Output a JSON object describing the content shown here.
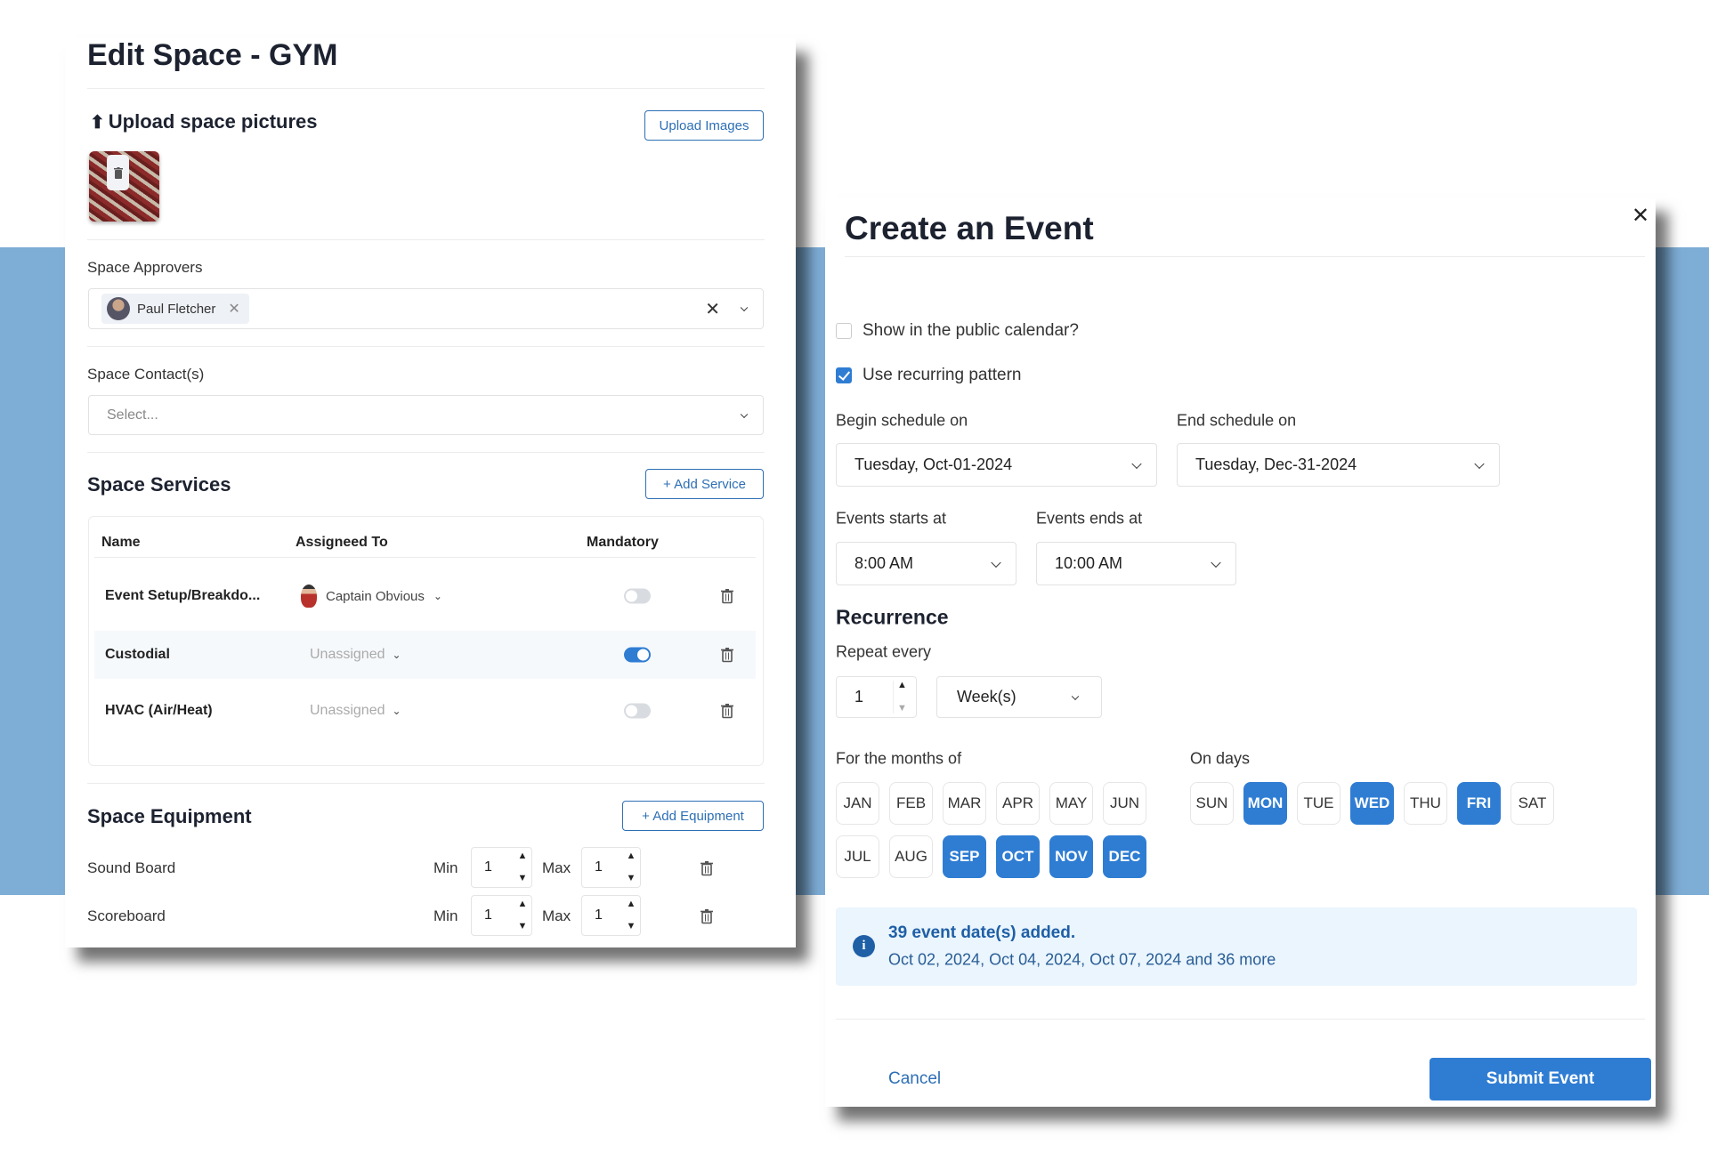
{
  "colors": {
    "accent": "#2f7dd3",
    "background_band": "#7eadd6",
    "info_bg": "#eaf5fd"
  },
  "edit_space": {
    "title": "Edit Space - GYM",
    "upload": {
      "heading": "Upload space pictures",
      "icon": "upload-icon",
      "button": "Upload Images"
    },
    "approvers": {
      "label": "Space Approvers",
      "selected": [
        {
          "name": "Paul Fletcher"
        }
      ]
    },
    "contacts": {
      "label": "Space Contact(s)",
      "placeholder": "Select..."
    },
    "services": {
      "heading": "Space Services",
      "add_button": "+ Add Service",
      "columns": [
        "Name",
        "Assigneed To",
        "Mandatory"
      ],
      "rows": [
        {
          "name": "Event Setup/Breakdo...",
          "assigned": "Captain Obvious",
          "mandatory": false
        },
        {
          "name": "Custodial",
          "assigned": "Unassigned",
          "mandatory": true
        },
        {
          "name": "HVAC (Air/Heat)",
          "assigned": "Unassigned",
          "mandatory": false
        }
      ]
    },
    "equipment": {
      "heading": "Space Equipment",
      "add_button": "+ Add Equipment",
      "min_label": "Min",
      "max_label": "Max",
      "rows": [
        {
          "name": "Sound Board",
          "min": "1",
          "max": "1"
        },
        {
          "name": "Scoreboard",
          "min": "1",
          "max": "1"
        }
      ]
    }
  },
  "create_event": {
    "title": "Create an Event",
    "public_calendar": {
      "label": "Show in the public calendar?",
      "checked": false
    },
    "recurring": {
      "label": "Use recurring pattern",
      "checked": true
    },
    "begin": {
      "label": "Begin schedule on",
      "value": "Tuesday, Oct-01-2024"
    },
    "end": {
      "label": "End schedule on",
      "value": "Tuesday, Dec-31-2024"
    },
    "starts": {
      "label": "Events starts at",
      "value": "8:00 AM"
    },
    "ends": {
      "label": "Events ends at",
      "value": "10:00 AM"
    },
    "recurrence_heading": "Recurrence",
    "repeat": {
      "label": "Repeat every",
      "value": "1",
      "unit": "Week(s)"
    },
    "months_label": "For the months of",
    "months": [
      {
        "label": "JAN",
        "selected": false
      },
      {
        "label": "FEB",
        "selected": false
      },
      {
        "label": "MAR",
        "selected": false
      },
      {
        "label": "APR",
        "selected": false
      },
      {
        "label": "MAY",
        "selected": false
      },
      {
        "label": "JUN",
        "selected": false
      },
      {
        "label": "JUL",
        "selected": false
      },
      {
        "label": "AUG",
        "selected": false
      },
      {
        "label": "SEP",
        "selected": true
      },
      {
        "label": "OCT",
        "selected": true
      },
      {
        "label": "NOV",
        "selected": true
      },
      {
        "label": "DEC",
        "selected": true
      }
    ],
    "days_label": "On days",
    "days": [
      {
        "label": "SUN",
        "selected": false
      },
      {
        "label": "MON",
        "selected": true
      },
      {
        "label": "TUE",
        "selected": false
      },
      {
        "label": "WED",
        "selected": true
      },
      {
        "label": "THU",
        "selected": false
      },
      {
        "label": "FRI",
        "selected": true
      },
      {
        "label": "SAT",
        "selected": false
      }
    ],
    "info": {
      "title": "39 event date(s) added.",
      "detail": "Oct 02, 2024, Oct 04, 2024, Oct 07, 2024 and 36 more"
    },
    "cancel": "Cancel",
    "submit": "Submit Event"
  }
}
